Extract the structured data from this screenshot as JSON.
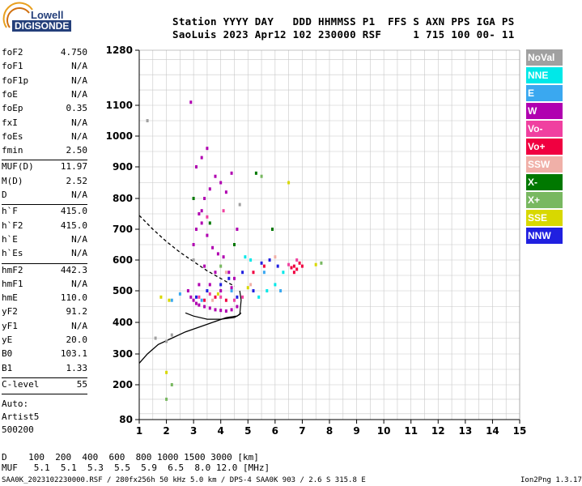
{
  "logo": {
    "line1": "Lowell",
    "line2": "DIGISONDE"
  },
  "header": {
    "line1": "Station YYYY DAY   DDD HHMMSS P1  FFS S AXN PPS IGA PS",
    "line2": "SaoLuis 2023 Apr12 102 230000 RSF     1 715 100 00- 11"
  },
  "params_group1": [
    {
      "label": "foF2",
      "value": "4.750"
    },
    {
      "label": "foF1",
      "value": "N/A"
    },
    {
      "label": "foF1p",
      "value": "N/A"
    },
    {
      "label": "foE",
      "value": "N/A"
    },
    {
      "label": "foEp",
      "value": "0.35"
    },
    {
      "label": "fxI",
      "value": "N/A"
    },
    {
      "label": "foEs",
      "value": "N/A"
    },
    {
      "label": "fmin",
      "value": "2.50"
    }
  ],
  "params_group2": [
    {
      "label": "MUF(D)",
      "value": "11.97"
    },
    {
      "label": "M(D)",
      "value": "2.52"
    },
    {
      "label": "D",
      "value": "N/A"
    }
  ],
  "params_group3": [
    {
      "label": "h`F",
      "value": "415.0"
    },
    {
      "label": "h`F2",
      "value": "415.0"
    },
    {
      "label": "h`E",
      "value": "N/A"
    },
    {
      "label": "h`Es",
      "value": "N/A"
    }
  ],
  "params_group4": [
    {
      "label": "hmF2",
      "value": "442.3"
    },
    {
      "label": "hmF1",
      "value": "N/A"
    },
    {
      "label": "hmE",
      "value": "110.0"
    },
    {
      "label": "yF2",
      "value": "91.2"
    },
    {
      "label": "yF1",
      "value": "N/A"
    },
    {
      "label": "yE",
      "value": "20.0"
    },
    {
      "label": "B0",
      "value": "103.1"
    },
    {
      "label": "B1",
      "value": "1.33"
    }
  ],
  "params_group5": [
    {
      "label": "C-level",
      "value": "55"
    }
  ],
  "auto": {
    "line1": "Auto:",
    "line2": "Artist5",
    "line3": "500200"
  },
  "legend": [
    {
      "label": "NoVal",
      "color": "#a0a0a0"
    },
    {
      "label": "NNE",
      "color": "#00e8e8"
    },
    {
      "label": "E",
      "color": "#3aa8f0"
    },
    {
      "label": "W",
      "color": "#b000b0"
    },
    {
      "label": "Vo-",
      "color": "#f040a0"
    },
    {
      "label": "Vo+",
      "color": "#f00040"
    },
    {
      "label": "SSW",
      "color": "#f0b0a8"
    },
    {
      "label": "X-",
      "color": "#007800"
    },
    {
      "label": "X+",
      "color": "#78b860"
    },
    {
      "label": "SSE",
      "color": "#d8d800"
    },
    {
      "label": "NNW",
      "color": "#2020e0"
    }
  ],
  "table": {
    "row1": "D    100  200  400  600  800 1000 1500 3000 [km]",
    "row2": "MUF   5.1  5.1  5.3  5.5  5.9  6.5  8.0 12.0 [MHz]"
  },
  "footer": {
    "left": "SAA0K_2023102230000.RSF / 280fx256h 50 kHz 5.0 km / DPS-4 SAA0K 903 / 2.6 S 315.8 E",
    "right": "Ion2Png 1.3.17"
  },
  "chart_data": {
    "type": "scatter",
    "title": "",
    "xlabel": "",
    "ylabel": "",
    "xlim": [
      1,
      15
    ],
    "ylim": [
      80,
      1280
    ],
    "x_ticks": [
      "1",
      "2",
      "3",
      "4",
      "5",
      "6",
      "7",
      "8",
      "9",
      "10",
      "11",
      "12",
      "13",
      "14",
      "15"
    ],
    "y_ticks": [
      "80",
      "200",
      "300",
      "400",
      "500",
      "600",
      "700",
      "800",
      "900",
      "1000",
      "1100",
      "1280"
    ],
    "y_scale": "nonlinear (virtual height)",
    "grid": true,
    "series": [
      {
        "name": "W",
        "color": "#b000b0",
        "points": [
          [
            2.9,
            480
          ],
          [
            3.0,
            470
          ],
          [
            3.1,
            460
          ],
          [
            3.2,
            455
          ],
          [
            3.4,
            450
          ],
          [
            3.6,
            445
          ],
          [
            3.8,
            440
          ],
          [
            4.0,
            438
          ],
          [
            4.2,
            436
          ],
          [
            4.4,
            440
          ],
          [
            4.6,
            450
          ],
          [
            3.0,
            650
          ],
          [
            3.1,
            700
          ],
          [
            3.2,
            750
          ],
          [
            3.3,
            720
          ],
          [
            3.5,
            680
          ],
          [
            3.7,
            640
          ],
          [
            3.9,
            620
          ],
          [
            4.1,
            610
          ],
          [
            4.3,
            560
          ],
          [
            4.5,
            540
          ],
          [
            3.3,
            760
          ],
          [
            3.4,
            800
          ],
          [
            3.6,
            830
          ],
          [
            3.8,
            870
          ],
          [
            4.0,
            850
          ],
          [
            4.2,
            820
          ],
          [
            4.4,
            880
          ],
          [
            3.1,
            900
          ],
          [
            3.3,
            930
          ],
          [
            3.5,
            960
          ],
          [
            2.8,
            500
          ],
          [
            3.2,
            520
          ],
          [
            3.6,
            520
          ],
          [
            4.0,
            500
          ],
          [
            4.4,
            510
          ],
          [
            2.9,
            1110
          ],
          [
            3.4,
            580
          ],
          [
            3.8,
            560
          ],
          [
            4.6,
            700
          ]
        ]
      },
      {
        "name": "Vo+",
        "color": "#f00040",
        "points": [
          [
            6.6,
            575
          ],
          [
            6.7,
            580
          ],
          [
            6.8,
            570
          ],
          [
            6.9,
            590
          ],
          [
            7.0,
            580
          ],
          [
            6.7,
            560
          ],
          [
            3.4,
            470
          ],
          [
            3.8,
            480
          ],
          [
            4.2,
            470
          ],
          [
            5.2,
            560
          ],
          [
            5.6,
            580
          ]
        ]
      },
      {
        "name": "Vo-",
        "color": "#f040a0",
        "points": [
          [
            3.2,
            480
          ],
          [
            3.6,
            490
          ],
          [
            4.0,
            480
          ],
          [
            4.5,
            470
          ],
          [
            4.8,
            480
          ],
          [
            6.5,
            585
          ],
          [
            6.8,
            600
          ],
          [
            3.5,
            740
          ],
          [
            4.1,
            760
          ]
        ]
      },
      {
        "name": "NNW",
        "color": "#2020e0",
        "points": [
          [
            3.1,
            480
          ],
          [
            3.5,
            500
          ],
          [
            4.0,
            520
          ],
          [
            4.3,
            540
          ],
          [
            4.6,
            480
          ],
          [
            5.2,
            500
          ],
          [
            5.5,
            590
          ],
          [
            5.8,
            600
          ],
          [
            6.1,
            580
          ],
          [
            4.8,
            560
          ]
        ]
      },
      {
        "name": "NNE",
        "color": "#00e8e8",
        "points": [
          [
            5.4,
            480
          ],
          [
            5.7,
            500
          ],
          [
            6.0,
            520
          ],
          [
            5.1,
            600
          ],
          [
            6.3,
            560
          ],
          [
            4.9,
            610
          ]
        ]
      },
      {
        "name": "E",
        "color": "#3aa8f0",
        "points": [
          [
            2.2,
            470
          ],
          [
            2.5,
            490
          ],
          [
            3.3,
            470
          ],
          [
            4.4,
            500
          ],
          [
            5.6,
            560
          ],
          [
            6.2,
            500
          ]
        ]
      },
      {
        "name": "X-",
        "color": "#007800",
        "points": [
          [
            3.0,
            800
          ],
          [
            3.6,
            720
          ],
          [
            4.5,
            650
          ],
          [
            5.3,
            880
          ],
          [
            5.9,
            700
          ]
        ]
      },
      {
        "name": "X+",
        "color": "#78b860",
        "points": [
          [
            2.0,
            150
          ],
          [
            2.2,
            200
          ],
          [
            4.0,
            580
          ],
          [
            5.5,
            870
          ],
          [
            7.7,
            590
          ]
        ]
      },
      {
        "name": "SSE",
        "color": "#d8d800",
        "points": [
          [
            1.8,
            480
          ],
          [
            2.1,
            470
          ],
          [
            3.9,
            490
          ],
          [
            5.0,
            510
          ],
          [
            7.5,
            585
          ],
          [
            6.5,
            850
          ],
          [
            2.0,
            240
          ]
        ]
      },
      {
        "name": "SSW",
        "color": "#f0b0a8",
        "points": [
          [
            3.7,
            470
          ],
          [
            4.2,
            560
          ],
          [
            5.1,
            520
          ],
          [
            6.0,
            610
          ]
        ]
      },
      {
        "name": "NoVal",
        "color": "#a0a0a0",
        "points": [
          [
            1.3,
            1050
          ],
          [
            2.2,
            360
          ],
          [
            2.0,
            340
          ],
          [
            1.6,
            350
          ],
          [
            3.0,
            600
          ],
          [
            4.7,
            780
          ]
        ]
      }
    ],
    "curves": [
      {
        "name": "profile-solid",
        "style": "solid",
        "points": [
          [
            1.0,
            270
          ],
          [
            1.3,
            300
          ],
          [
            1.7,
            330
          ],
          [
            2.2,
            350
          ],
          [
            2.7,
            370
          ],
          [
            3.2,
            385
          ],
          [
            3.7,
            400
          ],
          [
            4.2,
            415
          ],
          [
            4.6,
            420
          ],
          [
            4.75,
            430
          ]
        ]
      },
      {
        "name": "profile-dashed",
        "style": "dashed",
        "points": [
          [
            1.0,
            745
          ],
          [
            1.5,
            700
          ],
          [
            2.0,
            660
          ],
          [
            2.5,
            625
          ],
          [
            3.0,
            595
          ],
          [
            3.5,
            565
          ],
          [
            4.0,
            540
          ],
          [
            4.5,
            515
          ]
        ]
      },
      {
        "name": "trace-f2",
        "style": "solid-thin",
        "points": [
          [
            2.7,
            430
          ],
          [
            3.0,
            420
          ],
          [
            3.5,
            410
          ],
          [
            4.0,
            410
          ],
          [
            4.5,
            415
          ],
          [
            4.7,
            425
          ],
          [
            4.75,
            470
          ],
          [
            4.7,
            500
          ]
        ]
      }
    ]
  }
}
